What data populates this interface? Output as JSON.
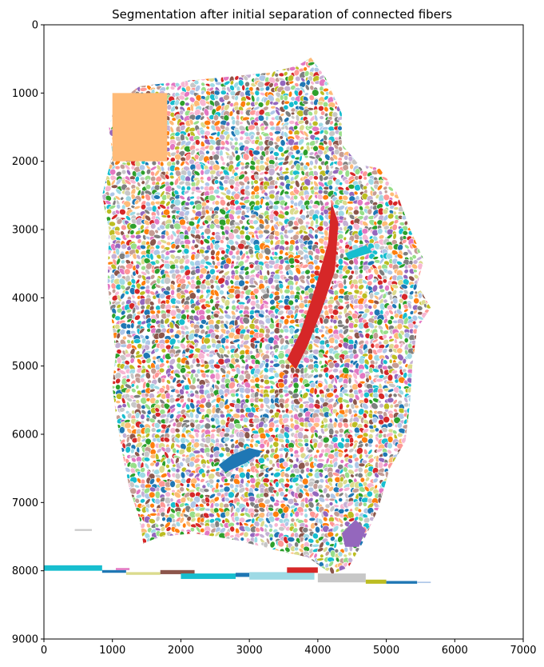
{
  "chart_data": {
    "type": "heatmap",
    "title": "Segmentation after initial separation of connected fibers",
    "xlabel": "",
    "ylabel": "",
    "xlim": [
      0,
      7000
    ],
    "ylim": [
      9000,
      0
    ],
    "x_ticks": [
      0,
      1000,
      2000,
      3000,
      4000,
      5000,
      6000,
      7000
    ],
    "y_ticks": [
      0,
      1000,
      2000,
      3000,
      4000,
      5000,
      6000,
      7000,
      8000,
      9000
    ],
    "x_tick_labels": [
      "0",
      "1000",
      "2000",
      "3000",
      "4000",
      "5000",
      "6000",
      "7000"
    ],
    "y_tick_labels": [
      "0",
      "1000",
      "2000",
      "3000",
      "4000",
      "5000",
      "6000",
      "7000",
      "8000",
      "9000"
    ],
    "grid": false,
    "legend": "none",
    "palette": [
      "#1f77b4",
      "#aec7e8",
      "#ff7f0e",
      "#ffbb78",
      "#2ca02c",
      "#98df8a",
      "#d62728",
      "#ff9896",
      "#9467bd",
      "#c5b0d5",
      "#8c564b",
      "#c49c94",
      "#e377c2",
      "#f7b6d2",
      "#7f7f7f",
      "#c7c7c7",
      "#bcbd22",
      "#dbdb8d",
      "#17becf",
      "#9edae5"
    ],
    "tissue_outline": [
      [
        1050,
        1150
      ],
      [
        1400,
        900
      ],
      [
        2000,
        830
      ],
      [
        2700,
        760
      ],
      [
        3300,
        700
      ],
      [
        3700,
        600
      ],
      [
        3900,
        480
      ],
      [
        4100,
        750
      ],
      [
        4350,
        1300
      ],
      [
        4350,
        1750
      ],
      [
        4600,
        2050
      ],
      [
        4900,
        2100
      ],
      [
        5150,
        2450
      ],
      [
        5350,
        3000
      ],
      [
        5550,
        3450
      ],
      [
        5450,
        3800
      ],
      [
        5650,
        4150
      ],
      [
        5450,
        4450
      ],
      [
        5380,
        5000
      ],
      [
        5350,
        5500
      ],
      [
        5280,
        6100
      ],
      [
        5050,
        6500
      ],
      [
        4880,
        7100
      ],
      [
        4650,
        7600
      ],
      [
        4450,
        7950
      ],
      [
        4200,
        8050
      ],
      [
        3850,
        7800
      ],
      [
        3400,
        7700
      ],
      [
        2800,
        7550
      ],
      [
        2200,
        7450
      ],
      [
        1700,
        7500
      ],
      [
        1450,
        7600
      ],
      [
        1400,
        7250
      ],
      [
        1250,
        6800
      ],
      [
        1150,
        6300
      ],
      [
        1050,
        5700
      ],
      [
        1000,
        5300
      ],
      [
        1050,
        4800
      ],
      [
        1000,
        4400
      ],
      [
        930,
        3800
      ],
      [
        950,
        3000
      ],
      [
        850,
        2500
      ],
      [
        1000,
        1900
      ],
      [
        950,
        1500
      ]
    ],
    "annotations": [
      {
        "shape": "rect",
        "x0": 1000,
        "x1": 1800,
        "y0": 1000,
        "y1": 2000,
        "color": "#ffbb78"
      },
      {
        "shape": "band",
        "points": [
          [
            3550,
            4900
          ],
          [
            3750,
            4500
          ],
          [
            3950,
            3900
          ],
          [
            4150,
            3200
          ],
          [
            4200,
            2600
          ],
          [
            4300,
            2900
          ],
          [
            4250,
            3600
          ],
          [
            4050,
            4200
          ],
          [
            3850,
            4700
          ],
          [
            3680,
            5050
          ]
        ],
        "color": "#d62728"
      },
      {
        "shape": "band",
        "points": [
          [
            2550,
            6450
          ],
          [
            2750,
            6300
          ],
          [
            3000,
            6200
          ],
          [
            3200,
            6250
          ],
          [
            2950,
            6420
          ],
          [
            2650,
            6560
          ]
        ],
        "color": "#1f77b4"
      },
      {
        "shape": "band",
        "points": [
          [
            4350,
            7450
          ],
          [
            4550,
            7250
          ],
          [
            4700,
            7400
          ],
          [
            4600,
            7650
          ],
          [
            4400,
            7650
          ]
        ],
        "color": "#9467bd"
      },
      {
        "shape": "band",
        "points": [
          [
            4400,
            3350
          ],
          [
            4700,
            3230
          ],
          [
            4800,
            3330
          ],
          [
            4450,
            3440
          ]
        ],
        "color": "#17becf"
      }
    ],
    "strips": [
      {
        "x0": 0,
        "x1": 850,
        "y": 7920,
        "h": 80,
        "color": "#17becf"
      },
      {
        "x0": 850,
        "x1": 1200,
        "y": 7990,
        "h": 40,
        "color": "#1f77b4"
      },
      {
        "x0": 1050,
        "x1": 1250,
        "y": 7960,
        "h": 30,
        "color": "#e377c2"
      },
      {
        "x0": 1200,
        "x1": 1700,
        "y": 8020,
        "h": 40,
        "color": "#dbdb8d"
      },
      {
        "x0": 1700,
        "x1": 2200,
        "y": 7990,
        "h": 60,
        "color": "#8c564b"
      },
      {
        "x0": 2000,
        "x1": 2800,
        "y": 8040,
        "h": 80,
        "color": "#17becf"
      },
      {
        "x0": 2800,
        "x1": 3000,
        "y": 8030,
        "h": 60,
        "color": "#1f77b4"
      },
      {
        "x0": 3000,
        "x1": 3950,
        "y": 8020,
        "h": 110,
        "color": "#9edae5"
      },
      {
        "x0": 3550,
        "x1": 4000,
        "y": 7950,
        "h": 80,
        "color": "#d62728"
      },
      {
        "x0": 4000,
        "x1": 4700,
        "y": 8040,
        "h": 130,
        "color": "#c7c7c7"
      },
      {
        "x0": 4700,
        "x1": 5000,
        "y": 8130,
        "h": 60,
        "color": "#bcbd22"
      },
      {
        "x0": 5000,
        "x1": 5450,
        "y": 8150,
        "h": 40,
        "color": "#1f77b4"
      },
      {
        "x0": 5450,
        "x1": 5650,
        "y": 8160,
        "h": 20,
        "color": "#aec7e8"
      },
      {
        "x0": 450,
        "x1": 700,
        "y": 7390,
        "h": 25,
        "color": "#c7c7c7"
      }
    ]
  }
}
